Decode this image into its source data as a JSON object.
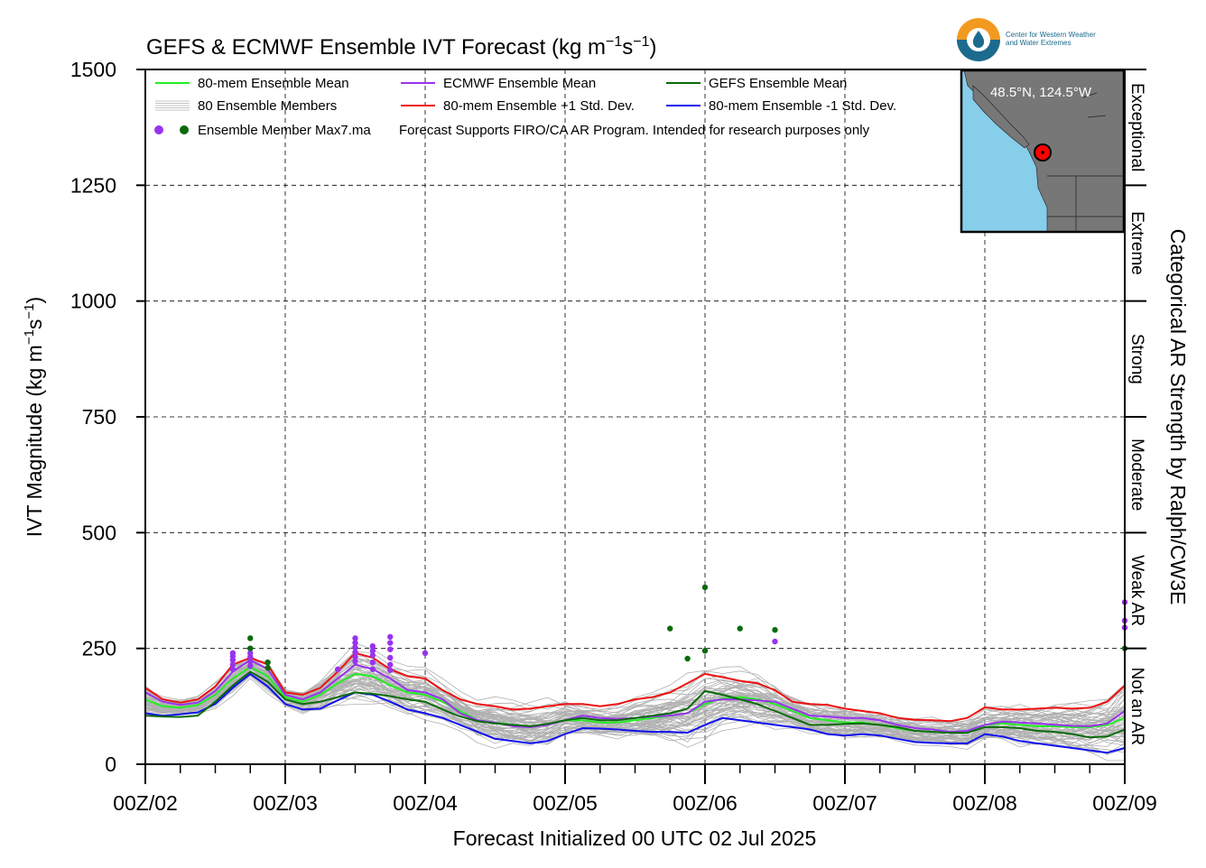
{
  "chart_data": {
    "type": "line",
    "title": "GEFS & ECMWF Ensemble IVT Forecast (kg m⁻¹s⁻¹)",
    "title_parts": {
      "main": "GEFS & ECMWF Ensemble IVT Forecast (kg m",
      "exp1": "−1",
      "mid": "s",
      "exp2": "−1",
      "end": ")"
    },
    "ylabel": "IVT Magnitude (kg m⁻¹s⁻¹)",
    "ylabel_parts": {
      "main": "IVT Magnitude (kg m",
      "exp1": "−1",
      "mid": "s",
      "exp2": "−1",
      "end": ")"
    },
    "xlabel": "Forecast Initialized 00 UTC 02 Jul 2025",
    "right_label": "Categorical AR Strength by Ralph/CW3E",
    "ylim": [
      0,
      1500
    ],
    "xlim": [
      0,
      168
    ],
    "x_unit": "hours since 00 UTC 02 Jul 2025",
    "yticks": [
      0,
      250,
      500,
      750,
      1000,
      1250,
      1500
    ],
    "xticks": [
      {
        "x": 0,
        "label": "00Z/02"
      },
      {
        "x": 24,
        "label": "00Z/03"
      },
      {
        "x": 48,
        "label": "00Z/04"
      },
      {
        "x": 72,
        "label": "00Z/05"
      },
      {
        "x": 96,
        "label": "00Z/06"
      },
      {
        "x": 120,
        "label": "00Z/07"
      },
      {
        "x": 144,
        "label": "00Z/08"
      },
      {
        "x": 168,
        "label": "00Z/09"
      }
    ],
    "grid": true,
    "categories_ar": [
      {
        "label": "Not an AR",
        "range": [
          0,
          250
        ]
      },
      {
        "label": "Weak AR",
        "range": [
          250,
          500
        ]
      },
      {
        "label": "Moderate",
        "range": [
          500,
          750
        ]
      },
      {
        "label": "Strong",
        "range": [
          750,
          1000
        ]
      },
      {
        "label": "Extreme",
        "range": [
          1000,
          1250
        ]
      },
      {
        "label": "Exceptional",
        "range": [
          1250,
          1500
        ]
      }
    ],
    "legend": {
      "position": "top-left",
      "entries": [
        {
          "label": "80-mem Ensemble Mean",
          "color": "#22ee22",
          "kind": "line"
        },
        {
          "label": "ECMWF Ensemble Mean",
          "color": "#9933ee",
          "kind": "line"
        },
        {
          "label": "GEFS Ensemble Mean",
          "color": "#0a6b0a",
          "kind": "line"
        },
        {
          "label": "80 Ensemble Members",
          "color": "#b0b0b0",
          "kind": "multiline"
        },
        {
          "label": "80-mem Ensemble +1 Std. Dev.",
          "color": "#ee1111",
          "kind": "line"
        },
        {
          "label": "80-mem Ensemble -1 Std. Dev.",
          "color": "#1111ee",
          "kind": "line"
        },
        {
          "label": "Ensemble Member Max7.ma",
          "colors": [
            "#9933ee",
            "#0a6b0a"
          ],
          "kind": "dots"
        }
      ],
      "note": "Forecast Supports FIRO/CA AR Program. Intended for research purposes only"
    },
    "x": [
      0,
      3,
      6,
      9,
      12,
      15,
      18,
      21,
      24,
      27,
      30,
      33,
      36,
      39,
      42,
      45,
      48,
      51,
      54,
      57,
      60,
      63,
      66,
      69,
      72,
      75,
      78,
      81,
      84,
      87,
      90,
      93,
      96,
      99,
      102,
      105,
      108,
      111,
      114,
      117,
      120,
      123,
      126,
      129,
      132,
      135,
      138,
      141,
      144,
      147,
      150,
      153,
      156,
      159,
      162,
      165,
      168
    ],
    "series": [
      {
        "name": "80-mem Ensemble Mean",
        "color": "#22ee22",
        "values": [
          140,
          125,
          122,
          128,
          150,
          185,
          210,
          190,
          145,
          135,
          150,
          175,
          195,
          190,
          170,
          155,
          150,
          135,
          115,
          95,
          90,
          85,
          82,
          85,
          95,
          95,
          90,
          90,
          95,
          100,
          105,
          110,
          130,
          142,
          145,
          140,
          130,
          115,
          100,
          95,
          90,
          90,
          85,
          78,
          72,
          70,
          68,
          70,
          85,
          88,
          85,
          82,
          82,
          80,
          80,
          85,
          100
        ]
      },
      {
        "name": "ECMWF Ensemble Mean",
        "color": "#9933ee",
        "values": [
          155,
          135,
          128,
          133,
          158,
          200,
          225,
          205,
          150,
          140,
          155,
          185,
          215,
          205,
          185,
          160,
          155,
          140,
          110,
          95,
          90,
          82,
          80,
          85,
          95,
          105,
          100,
          98,
          100,
          103,
          105,
          110,
          135,
          140,
          140,
          138,
          135,
          120,
          105,
          103,
          100,
          100,
          95,
          85,
          78,
          75,
          70,
          72,
          85,
          92,
          90,
          88,
          85,
          83,
          82,
          88,
          115
        ]
      },
      {
        "name": "GEFS Ensemble Mean",
        "color": "#0a6b0a",
        "values": [
          105,
          103,
          102,
          105,
          135,
          170,
          200,
          178,
          140,
          130,
          135,
          145,
          155,
          152,
          147,
          140,
          135,
          118,
          103,
          93,
          88,
          85,
          82,
          87,
          95,
          100,
          95,
          95,
          100,
          105,
          110,
          120,
          158,
          150,
          140,
          130,
          115,
          100,
          85,
          85,
          87,
          88,
          85,
          80,
          72,
          70,
          68,
          68,
          80,
          80,
          78,
          72,
          70,
          65,
          58,
          60,
          75
        ]
      },
      {
        "name": "80-mem Ensemble +1 Std. Dev.",
        "color": "#ee1111",
        "values": [
          165,
          140,
          133,
          140,
          168,
          215,
          230,
          215,
          155,
          150,
          165,
          200,
          240,
          230,
          205,
          190,
          185,
          160,
          140,
          130,
          125,
          118,
          120,
          125,
          130,
          130,
          125,
          130,
          140,
          145,
          155,
          175,
          195,
          188,
          180,
          175,
          160,
          135,
          130,
          128,
          120,
          115,
          110,
          100,
          96,
          95,
          93,
          100,
          123,
          118,
          118,
          120,
          122,
          120,
          122,
          135,
          170
        ]
      },
      {
        "name": "80-mem Ensemble -1 Std. Dev.",
        "color": "#1111ee",
        "values": [
          110,
          105,
          108,
          112,
          130,
          165,
          195,
          168,
          130,
          118,
          120,
          138,
          155,
          150,
          135,
          118,
          110,
          100,
          85,
          70,
          55,
          50,
          45,
          50,
          65,
          78,
          77,
          75,
          72,
          70,
          70,
          68,
          85,
          100,
          95,
          90,
          85,
          80,
          75,
          65,
          62,
          65,
          62,
          55,
          48,
          46,
          45,
          45,
          65,
          60,
          50,
          45,
          40,
          35,
          30,
          25,
          35
        ]
      }
    ],
    "members_note": "80 Ensemble Members (light gray lines) spread around the ensemble mean, roughly between the -1 and +1 Std. Dev. curves, with outliers up to ~380",
    "max_points": {
      "purple": [
        {
          "x": 15,
          "y": 240
        },
        {
          "x": 15,
          "y": 233
        },
        {
          "x": 15,
          "y": 225
        },
        {
          "x": 15,
          "y": 215
        },
        {
          "x": 15,
          "y": 205
        },
        {
          "x": 18,
          "y": 250
        },
        {
          "x": 18,
          "y": 240
        },
        {
          "x": 18,
          "y": 232
        },
        {
          "x": 18,
          "y": 222
        },
        {
          "x": 18,
          "y": 212
        },
        {
          "x": 33,
          "y": 205
        },
        {
          "x": 36,
          "y": 272
        },
        {
          "x": 36,
          "y": 262
        },
        {
          "x": 36,
          "y": 252
        },
        {
          "x": 36,
          "y": 242
        },
        {
          "x": 36,
          "y": 232
        },
        {
          "x": 36,
          "y": 222
        },
        {
          "x": 39,
          "y": 255
        },
        {
          "x": 39,
          "y": 245
        },
        {
          "x": 39,
          "y": 235
        },
        {
          "x": 39,
          "y": 220
        },
        {
          "x": 39,
          "y": 205
        },
        {
          "x": 42,
          "y": 275
        },
        {
          "x": 42,
          "y": 262
        },
        {
          "x": 42,
          "y": 248
        },
        {
          "x": 42,
          "y": 230
        },
        {
          "x": 42,
          "y": 215
        },
        {
          "x": 42,
          "y": 203
        },
        {
          "x": 48,
          "y": 240
        },
        {
          "x": 108,
          "y": 265
        },
        {
          "x": 168,
          "y": 350
        },
        {
          "x": 168,
          "y": 310
        },
        {
          "x": 168,
          "y": 295
        }
      ],
      "green": [
        {
          "x": 18,
          "y": 272
        },
        {
          "x": 18,
          "y": 250
        },
        {
          "x": 21,
          "y": 220
        },
        {
          "x": 21,
          "y": 208
        },
        {
          "x": 90,
          "y": 293
        },
        {
          "x": 93,
          "y": 228
        },
        {
          "x": 96,
          "y": 382
        },
        {
          "x": 96,
          "y": 245
        },
        {
          "x": 102,
          "y": 293
        },
        {
          "x": 108,
          "y": 290
        },
        {
          "x": 168,
          "y": 250
        }
      ]
    },
    "inset_map": {
      "location_label": "48.5°N, 124.5°W",
      "lat": 48.5,
      "lon": -124.5,
      "ocean_color": "#87ceeb",
      "land_color": "#777777",
      "marker_color": "#ff0000"
    },
    "logo": {
      "line1": "Center for Western Weather",
      "line2": "and Water Extremes"
    }
  }
}
